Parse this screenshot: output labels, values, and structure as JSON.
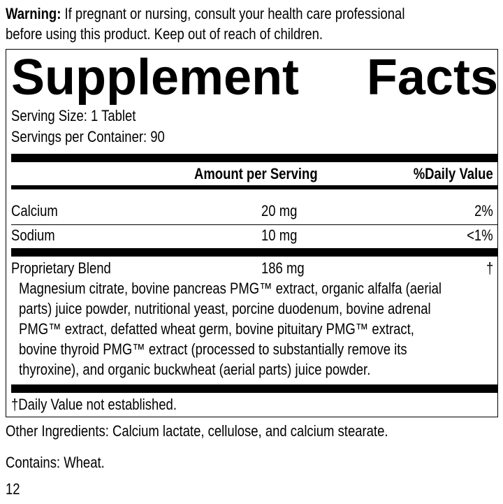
{
  "warning": {
    "label": "Warning:",
    "line1": " If pregnant or nursing, consult your health care professional",
    "line2": "before using this product. Keep out of reach of children."
  },
  "facts": {
    "title_word1": "Supplement",
    "title_word2": "Facts",
    "serving_size": "Serving Size: 1 Tablet",
    "servings_per_container": "Servings per Container: 90",
    "header": {
      "amount": "Amount per Serving",
      "daily_value": "%Daily Value"
    },
    "rows": [
      {
        "name": "Calcium",
        "amount": "20 mg",
        "dv": "2%"
      },
      {
        "name": "Sodium",
        "amount": "10 mg",
        "dv": "<1%"
      },
      {
        "name": "Proprietary Blend",
        "amount": "186 mg",
        "dv": "†"
      }
    ],
    "blend_lines": [
      "Magnesium citrate, bovine pancreas PMG™ extract, organic alfalfa (aerial",
      "parts) juice powder, nutritional yeast, porcine duodenum, bovine adrenal",
      "PMG™ extract, defatted wheat germ, bovine pituitary PMG™ extract,",
      "bovine thyroid PMG™ extract (processed to substantially remove its",
      "thyroxine), and organic buckwheat (aerial parts) juice powder."
    ],
    "footnote": "†Daily Value not established."
  },
  "other_ingredients": "Other Ingredients: Calcium lactate, cellulose, and calcium stearate.",
  "contains": "Contains: Wheat.",
  "page_number": "12"
}
